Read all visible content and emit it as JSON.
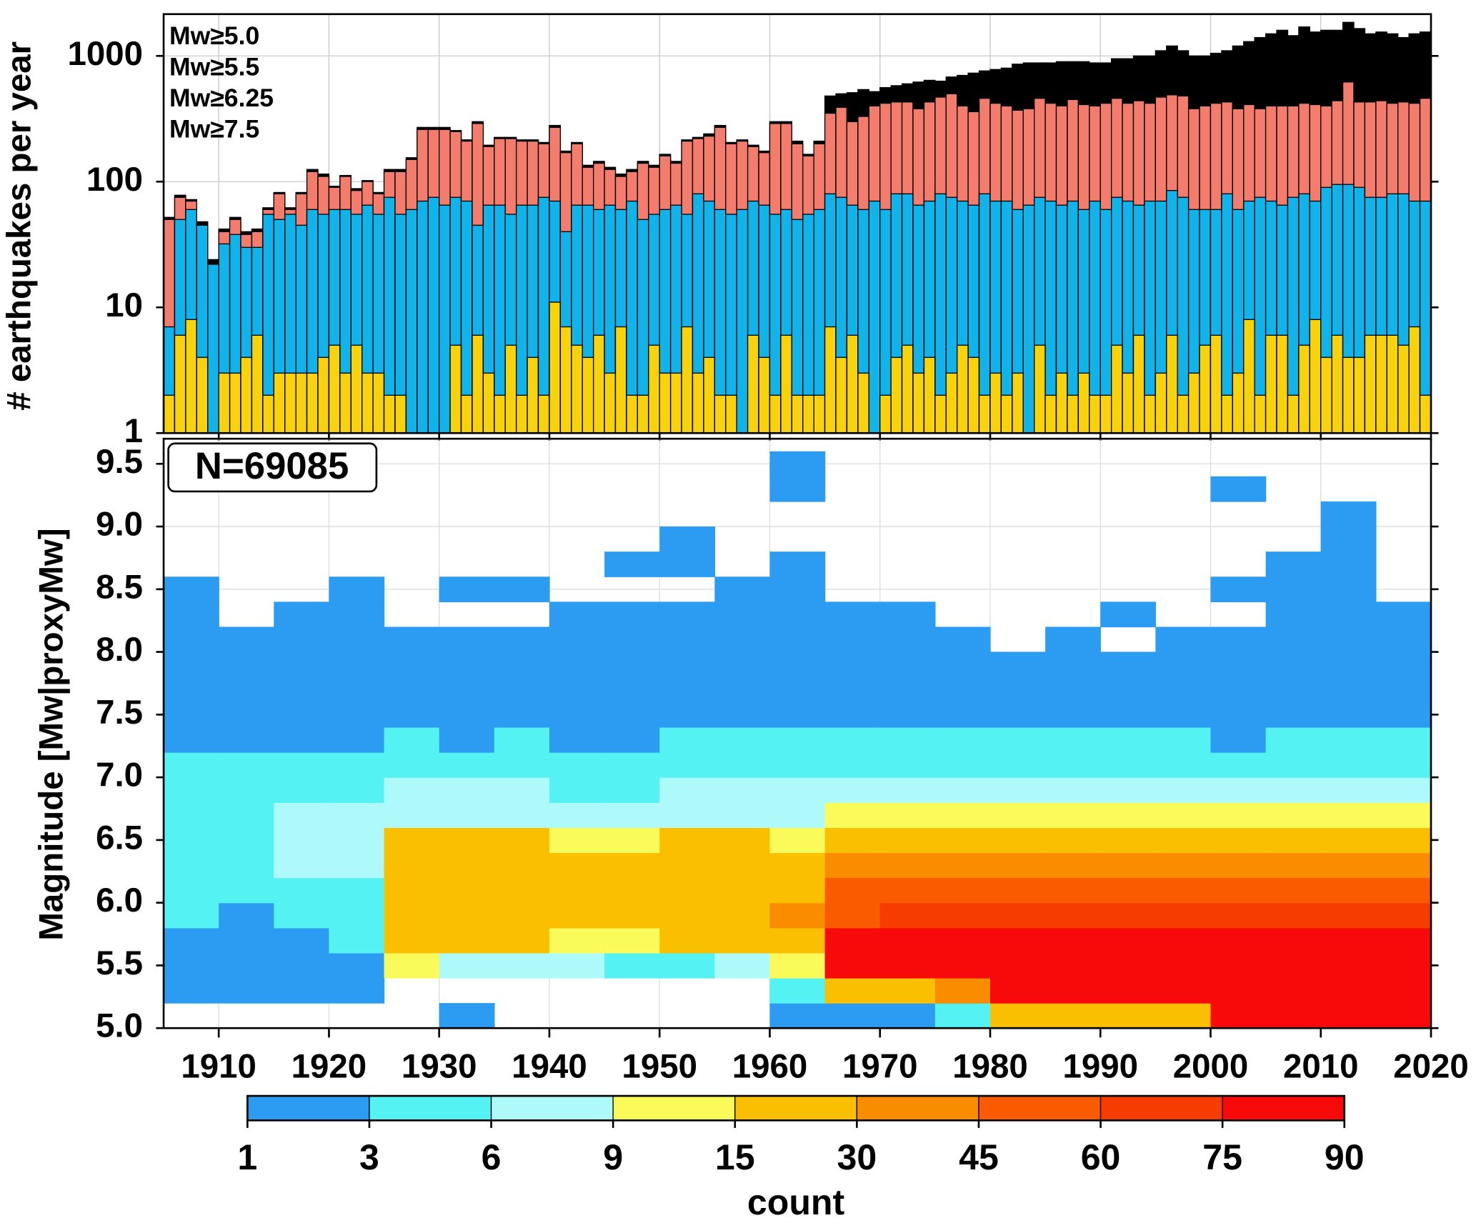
{
  "chart_data": [
    {
      "type": "bar",
      "log": true,
      "grid": true,
      "legend": "upper left",
      "ylabel": "# earthquakes per year",
      "xlim": [
        1905,
        2020
      ],
      "ylim": [
        1,
        2150
      ],
      "yticks": [
        1,
        10,
        100,
        1000
      ],
      "xticks": [
        1910,
        1920,
        1930,
        1940,
        1950,
        1960,
        1970,
        1980,
        1990,
        2000,
        2010,
        2020
      ],
      "x": [
        1905,
        1906,
        1907,
        1908,
        1909,
        1910,
        1911,
        1912,
        1913,
        1914,
        1915,
        1916,
        1917,
        1918,
        1919,
        1920,
        1921,
        1922,
        1923,
        1924,
        1925,
        1926,
        1927,
        1928,
        1929,
        1930,
        1931,
        1932,
        1933,
        1934,
        1935,
        1936,
        1937,
        1938,
        1939,
        1940,
        1941,
        1942,
        1943,
        1944,
        1945,
        1946,
        1947,
        1948,
        1949,
        1950,
        1951,
        1952,
        1953,
        1954,
        1955,
        1956,
        1957,
        1958,
        1959,
        1960,
        1961,
        1962,
        1963,
        1964,
        1965,
        1966,
        1967,
        1968,
        1969,
        1970,
        1971,
        1972,
        1973,
        1974,
        1975,
        1976,
        1977,
        1978,
        1979,
        1980,
        1981,
        1982,
        1983,
        1984,
        1985,
        1986,
        1987,
        1988,
        1989,
        1990,
        1991,
        1992,
        1993,
        1994,
        1995,
        1996,
        1997,
        1998,
        1999,
        2000,
        2001,
        2002,
        2003,
        2004,
        2005,
        2006,
        2007,
        2008,
        2009,
        2010,
        2011,
        2012,
        2013,
        2014,
        2015,
        2016,
        2017,
        2018,
        2019
      ],
      "series": [
        {
          "name": "Mw≥5.0",
          "color": "#000000",
          "values": [
            52,
            78,
            72,
            48,
            24,
            42,
            52,
            40,
            42,
            62,
            82,
            62,
            82,
            125,
            115,
            92,
            112,
            88,
            102,
            82,
            125,
            125,
            155,
            270,
            270,
            270,
            255,
            215,
            300,
            195,
            225,
            225,
            215,
            215,
            205,
            280,
            175,
            205,
            135,
            145,
            130,
            115,
            125,
            145,
            135,
            165,
            145,
            215,
            225,
            240,
            280,
            205,
            215,
            195,
            175,
            300,
            300,
            210,
            165,
            210,
            480,
            500,
            510,
            540,
            520,
            560,
            580,
            600,
            620,
            640,
            630,
            680,
            700,
            730,
            760,
            780,
            800,
            860,
            880,
            880,
            880,
            900,
            900,
            900,
            880,
            880,
            950,
            950,
            1000,
            1000,
            1100,
            1200,
            1100,
            1000,
            1000,
            1050,
            1100,
            1200,
            1300,
            1400,
            1500,
            1600,
            1450,
            1700,
            1550,
            1600,
            1600,
            1850,
            1650,
            1500,
            1550,
            1500,
            1400,
            1500,
            1550
          ]
        },
        {
          "name": "Mw≥5.5",
          "color": "#f47c6c",
          "values": [
            50,
            75,
            70,
            45,
            22,
            40,
            50,
            38,
            40,
            60,
            80,
            60,
            80,
            120,
            110,
            90,
            110,
            85,
            100,
            80,
            120,
            120,
            150,
            260,
            260,
            260,
            250,
            210,
            290,
            190,
            220,
            220,
            210,
            210,
            200,
            270,
            170,
            200,
            130,
            140,
            125,
            110,
            120,
            140,
            130,
            160,
            140,
            210,
            220,
            230,
            270,
            200,
            210,
            190,
            170,
            290,
            290,
            200,
            160,
            200,
            350,
            390,
            300,
            330,
            400,
            420,
            430,
            430,
            380,
            430,
            470,
            500,
            400,
            360,
            460,
            420,
            400,
            370,
            380,
            460,
            420,
            400,
            450,
            410,
            400,
            420,
            460,
            420,
            440,
            420,
            470,
            490,
            480,
            380,
            400,
            420,
            430,
            380,
            410,
            380,
            400,
            400,
            400,
            420,
            410,
            400,
            440,
            620,
            430,
            430,
            440,
            420,
            430,
            420,
            460
          ]
        },
        {
          "name": "Mw≥6.25",
          "color": "#10b4ea",
          "values": [
            7,
            50,
            60,
            45,
            22,
            32,
            38,
            30,
            30,
            55,
            50,
            55,
            45,
            60,
            55,
            60,
            60,
            55,
            65,
            55,
            75,
            55,
            60,
            70,
            75,
            65,
            75,
            70,
            45,
            65,
            65,
            55,
            65,
            65,
            75,
            70,
            40,
            65,
            65,
            60,
            65,
            60,
            70,
            50,
            55,
            60,
            65,
            55,
            80,
            70,
            60,
            55,
            60,
            70,
            65,
            55,
            60,
            50,
            55,
            60,
            80,
            75,
            65,
            60,
            70,
            60,
            80,
            80,
            65,
            70,
            80,
            75,
            70,
            65,
            80,
            70,
            70,
            60,
            65,
            75,
            70,
            65,
            70,
            60,
            70,
            60,
            75,
            70,
            65,
            70,
            70,
            85,
            75,
            60,
            60,
            60,
            80,
            60,
            70,
            75,
            70,
            65,
            75,
            80,
            70,
            90,
            95,
            95,
            90,
            75,
            75,
            80,
            80,
            70,
            70
          ]
        },
        {
          "name": "Mw≥7.5",
          "color": "#f8d20a",
          "values": [
            2,
            6,
            8,
            4,
            0,
            3,
            3,
            4,
            6,
            2,
            3,
            3,
            3,
            3,
            4,
            5,
            3,
            5,
            3,
            3,
            2,
            2,
            1,
            0,
            1,
            1,
            5,
            2,
            6,
            3,
            2,
            5,
            2,
            4,
            2,
            11,
            7,
            5,
            4,
            6,
            3,
            7,
            2,
            2,
            5,
            3,
            3,
            7,
            3,
            4,
            2,
            2,
            1,
            6,
            4,
            2,
            6,
            2,
            2,
            2,
            7,
            4,
            6,
            3,
            1,
            2,
            4,
            5,
            3,
            4,
            2,
            3,
            5,
            4,
            2,
            3,
            2,
            3,
            1,
            5,
            2,
            3,
            2,
            3,
            2,
            2,
            5,
            3,
            6,
            2,
            3,
            6,
            2,
            3,
            5,
            6,
            2,
            3,
            8,
            2,
            6,
            6,
            2,
            5,
            8,
            4,
            6,
            4,
            4,
            6,
            6,
            6,
            5,
            7,
            2
          ]
        }
      ]
    },
    {
      "type": "heatmap",
      "grid": true,
      "ylabel": "Magnitude [Mw|proxyMw]",
      "annotation": "N=69085",
      "xlim": [
        1905,
        2020
      ],
      "ylim": [
        5.0,
        9.7
      ],
      "xticks": [
        1910,
        1920,
        1930,
        1940,
        1950,
        1960,
        1970,
        1980,
        1990,
        2000,
        2010,
        2020
      ],
      "yticks": [
        {
          "value": 5,
          "label": "5.0"
        },
        5.5,
        {
          "value": 6,
          "label": "6.0"
        },
        6.5,
        {
          "value": 7,
          "label": "7.0"
        },
        7.5,
        {
          "value": 8,
          "label": "8.0"
        },
        8.5,
        {
          "value": 9,
          "label": "9.0"
        },
        9.5
      ],
      "xbins": [
        1905,
        1910,
        1915,
        1920,
        1925,
        1930,
        1935,
        1940,
        1945,
        1950,
        1955,
        1960,
        1965,
        1970,
        1975,
        1980,
        1985,
        1990,
        1995,
        2000,
        2005,
        2010,
        2015,
        2020
      ],
      "ybins": [
        5.0,
        5.2,
        5.4,
        5.6,
        5.8,
        6.0,
        6.2,
        6.4,
        6.6,
        6.8,
        7.0,
        7.2,
        7.4,
        7.6,
        7.8,
        8.0,
        8.2,
        8.4,
        8.6,
        8.8,
        9.0,
        9.2,
        9.4,
        9.6
      ],
      "counts": [
        [
          0,
          0,
          0,
          0,
          0,
          1,
          0,
          0,
          0,
          0,
          0,
          1,
          2,
          2,
          3,
          20,
          20,
          25,
          25,
          80,
          85,
          90,
          90
        ],
        [
          1,
          1,
          1,
          2,
          0,
          0,
          0,
          0,
          0,
          0,
          0,
          3,
          20,
          25,
          40,
          80,
          85,
          85,
          85,
          85,
          88,
          90,
          90
        ],
        [
          2,
          1,
          2,
          2,
          12,
          8,
          6,
          6,
          5,
          5,
          6,
          10,
          80,
          80,
          85,
          85,
          85,
          88,
          85,
          85,
          85,
          88,
          90
        ],
        [
          2,
          2,
          2,
          3,
          18,
          20,
          15,
          12,
          12,
          15,
          18,
          25,
          75,
          78,
          80,
          80,
          82,
          82,
          80,
          80,
          80,
          82,
          82
        ],
        [
          3,
          2,
          3,
          4,
          20,
          22,
          20,
          15,
          18,
          20,
          25,
          30,
          55,
          60,
          62,
          62,
          65,
          65,
          62,
          60,
          65,
          65,
          65
        ],
        [
          3,
          3,
          4,
          5,
          22,
          22,
          22,
          18,
          18,
          22,
          25,
          28,
          45,
          50,
          50,
          52,
          55,
          52,
          50,
          48,
          50,
          55,
          50
        ],
        [
          4,
          5,
          6,
          8,
          22,
          22,
          22,
          18,
          20,
          22,
          22,
          25,
          35,
          38,
          38,
          40,
          42,
          40,
          38,
          38,
          40,
          42,
          40
        ],
        [
          5,
          5,
          6,
          8,
          15,
          15,
          15,
          14,
          14,
          15,
          15,
          14,
          22,
          25,
          25,
          25,
          28,
          25,
          24,
          25,
          26,
          28,
          28
        ],
        [
          4,
          4,
          6,
          6,
          7,
          8,
          7,
          6,
          6,
          7,
          8,
          8,
          10,
          12,
          12,
          12,
          14,
          12,
          12,
          12,
          12,
          14,
          13
        ],
        [
          4,
          4,
          5,
          5,
          6,
          6,
          6,
          5,
          5,
          6,
          6,
          6,
          7,
          8,
          8,
          7,
          8,
          7,
          7,
          7,
          7,
          8,
          8
        ],
        [
          3,
          3,
          3,
          4,
          4,
          4,
          4,
          3,
          3,
          4,
          4,
          4,
          5,
          5,
          5,
          4,
          5,
          5,
          4,
          4,
          4,
          5,
          5
        ],
        [
          2,
          2,
          2,
          2,
          3,
          2,
          3,
          2,
          2,
          3,
          3,
          3,
          3,
          3,
          3,
          3,
          3,
          3,
          3,
          2,
          3,
          3,
          3
        ],
        [
          2,
          1,
          2,
          2,
          2,
          2,
          2,
          2,
          2,
          2,
          2,
          2,
          2,
          2,
          2,
          2,
          2,
          2,
          2,
          2,
          2,
          2,
          2
        ],
        [
          1,
          1,
          1,
          1,
          1,
          1,
          1,
          1,
          1,
          1,
          1,
          1,
          1,
          1,
          1,
          1,
          1,
          1,
          1,
          1,
          1,
          1,
          2
        ],
        [
          1,
          1,
          1,
          1,
          1,
          1,
          1,
          1,
          1,
          1,
          1,
          1,
          1,
          1,
          1,
          1,
          1,
          1,
          1,
          1,
          1,
          1,
          1
        ],
        [
          1,
          1,
          1,
          1,
          1,
          1,
          1,
          1,
          1,
          1,
          1,
          1,
          1,
          1,
          1,
          0,
          1,
          0,
          1,
          1,
          1,
          1,
          1
        ],
        [
          1,
          0,
          1,
          1,
          0,
          0,
          0,
          1,
          1,
          1,
          1,
          1,
          1,
          1,
          0,
          0,
          0,
          1,
          0,
          0,
          1,
          1,
          1
        ],
        [
          1,
          0,
          0,
          1,
          0,
          1,
          1,
          0,
          0,
          0,
          1,
          1,
          0,
          0,
          0,
          0,
          0,
          0,
          0,
          1,
          1,
          1,
          0
        ],
        [
          0,
          0,
          0,
          0,
          0,
          0,
          0,
          0,
          1,
          1,
          0,
          1,
          0,
          0,
          0,
          0,
          0,
          0,
          0,
          0,
          1,
          1,
          0
        ],
        [
          0,
          0,
          0,
          0,
          0,
          0,
          0,
          0,
          0,
          1,
          0,
          0,
          0,
          0,
          0,
          0,
          0,
          0,
          0,
          0,
          0,
          1,
          0
        ],
        [
          0,
          0,
          0,
          0,
          0,
          0,
          0,
          0,
          0,
          0,
          0,
          0,
          0,
          0,
          0,
          0,
          0,
          0,
          0,
          0,
          0,
          1,
          0
        ],
        [
          0,
          0,
          0,
          0,
          0,
          0,
          0,
          0,
          0,
          0,
          0,
          1,
          0,
          0,
          0,
          0,
          0,
          0,
          0,
          1,
          0,
          0,
          0
        ],
        [
          0,
          0,
          0,
          0,
          0,
          0,
          0,
          0,
          0,
          0,
          0,
          1,
          0,
          0,
          0,
          0,
          0,
          0,
          0,
          0,
          0,
          0,
          0
        ]
      ],
      "colorbar": {
        "label": "count",
        "ticks": [
          1,
          3,
          6,
          9,
          15,
          30,
          45,
          60,
          75,
          90
        ],
        "colors": [
          "#2c9cf2",
          "#54f2f2",
          "#aefafa",
          "#fafa5a",
          "#fac000",
          "#fa8c00",
          "#fa5a00",
          "#f63c00",
          "#f80a0a"
        ]
      }
    }
  ]
}
